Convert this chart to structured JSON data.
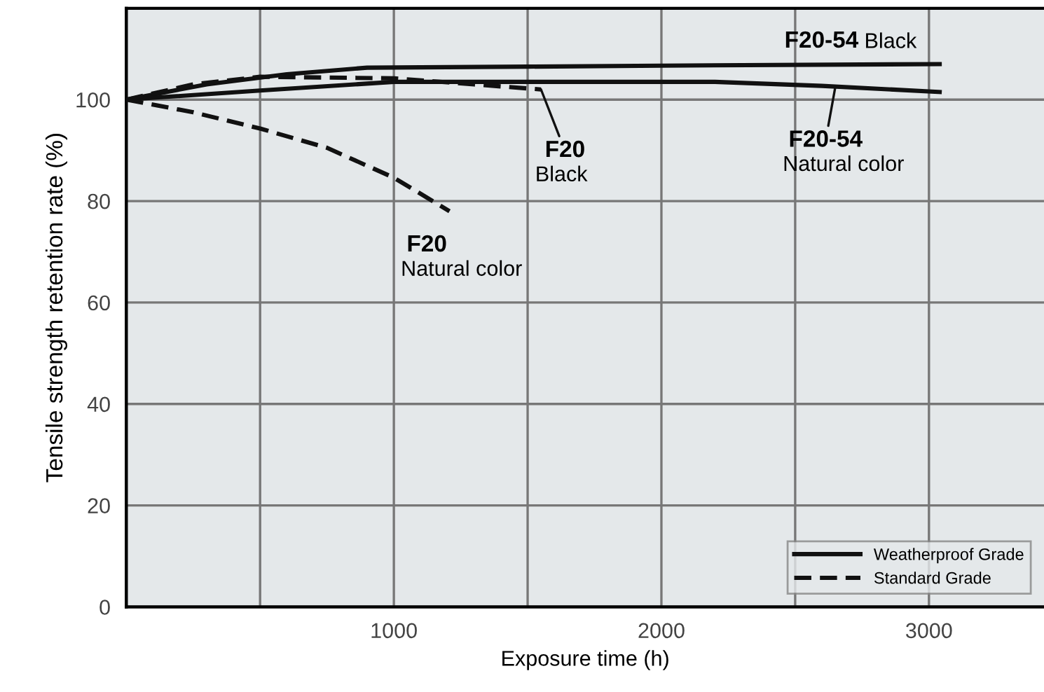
{
  "chart_data": {
    "type": "line",
    "xlabel": "Exposure time (h)",
    "ylabel": "Tensile strength retention rate (%)",
    "xlim": [
      0,
      3430
    ],
    "ylim": [
      0,
      118
    ],
    "xticks": [
      {
        "value": 500,
        "label": null
      },
      1000,
      {
        "value": 1500,
        "label": null
      },
      2000,
      {
        "value": 2500,
        "label": null
      },
      3000
    ],
    "yticks": [
      0,
      20,
      40,
      60,
      80,
      100
    ],
    "grid": true,
    "legend": "bottom right",
    "marker": "none",
    "series": [
      {
        "name": "Weatherproof Grade",
        "color": "#111111",
        "line_style": "solid",
        "x": [
          0,
          300,
          600,
          900,
          1500,
          2000,
          3040
        ],
        "values": [
          100,
          103,
          105,
          106.3,
          106.5,
          106.7,
          107
        ]
      },
      {
        "color": "#111111",
        "line_style": "solid",
        "x": [
          0,
          500,
          1000,
          2200,
          2600,
          3040
        ],
        "values": [
          100,
          101.8,
          103.5,
          103.5,
          102.7,
          101.5
        ]
      },
      {
        "name": "Standard Grade",
        "color": "#111111",
        "line_style": "dashed",
        "x": [
          0,
          250,
          500,
          1000,
          1300,
          1550
        ],
        "values": [
          100,
          103,
          104.5,
          104.2,
          103,
          102
        ]
      },
      {
        "color": "#111111",
        "line_style": "dashed",
        "x": [
          0,
          250,
          500,
          750,
          1000,
          1208
        ],
        "values": [
          100,
          97.5,
          94.3,
          90.5,
          84.6,
          78
        ]
      }
    ],
    "annotations": [
      {
        "text": "F20-54 Black",
        "x": 2300,
        "y": 107
      },
      {
        "text": "F20-54\nNatural color",
        "x": 2650,
        "y": 102.5
      },
      {
        "text": "F20\nBlack",
        "x": 1550,
        "y": 102
      },
      {
        "text": "F20\nNatural color",
        "x": 1208,
        "y": 78
      }
    ]
  }
}
